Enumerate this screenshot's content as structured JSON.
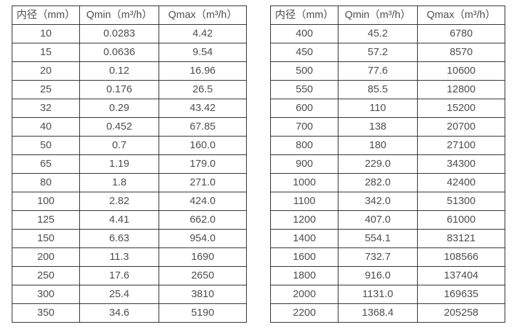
{
  "accent_colors": {
    "border": "#2e2e2e",
    "text": "#4d4d4d",
    "background": "#ffffff"
  },
  "tables": [
    {
      "name": "flow-table-small-diameters",
      "headers": [
        "内径（mm）",
        "Qmin（m³/h）",
        "Qmax（m³/h）"
      ],
      "rows": [
        [
          "10",
          "0.0283",
          "4.42"
        ],
        [
          "15",
          "0.0636",
          "9.54"
        ],
        [
          "20",
          "0.12",
          "16.96"
        ],
        [
          "25",
          "0.176",
          "26.5"
        ],
        [
          "32",
          "0.29",
          "43.42"
        ],
        [
          "40",
          "0.452",
          "67.85"
        ],
        [
          "50",
          "0.7",
          "160.0"
        ],
        [
          "65",
          "1.19",
          "179.0"
        ],
        [
          "80",
          "1.8",
          "271.0"
        ],
        [
          "100",
          "2.82",
          "424.0"
        ],
        [
          "125",
          "4.41",
          "662.0"
        ],
        [
          "150",
          "6.63",
          "954.0"
        ],
        [
          "200",
          "11.3",
          "1690"
        ],
        [
          "250",
          "17.6",
          "2650"
        ],
        [
          "300",
          "25.4",
          "3810"
        ],
        [
          "350",
          "34.6",
          "5190"
        ]
      ]
    },
    {
      "name": "flow-table-large-diameters",
      "headers": [
        "内径（mm）",
        "Qmin（m³/h）",
        "Qmax（m³/h）"
      ],
      "rows": [
        [
          "400",
          "45.2",
          "6780"
        ],
        [
          "450",
          "57.2",
          "8570"
        ],
        [
          "500",
          "77.6",
          "10600"
        ],
        [
          "550",
          "85.5",
          "12800"
        ],
        [
          "600",
          "110",
          "15200"
        ],
        [
          "700",
          "138",
          "20700"
        ],
        [
          "800",
          "180",
          "27100"
        ],
        [
          "900",
          "229.0",
          "34300"
        ],
        [
          "1000",
          "282.0",
          "42400"
        ],
        [
          "1100",
          "342.0",
          "51300"
        ],
        [
          "1200",
          "407.0",
          "61000"
        ],
        [
          "1400",
          "554.1",
          "83121"
        ],
        [
          "1600",
          "732.7",
          "108566"
        ],
        [
          "1800",
          "916.0",
          "137404"
        ],
        [
          "2000",
          "1131.0",
          "169635"
        ],
        [
          "2200",
          "1368.4",
          "205258"
        ]
      ]
    }
  ]
}
